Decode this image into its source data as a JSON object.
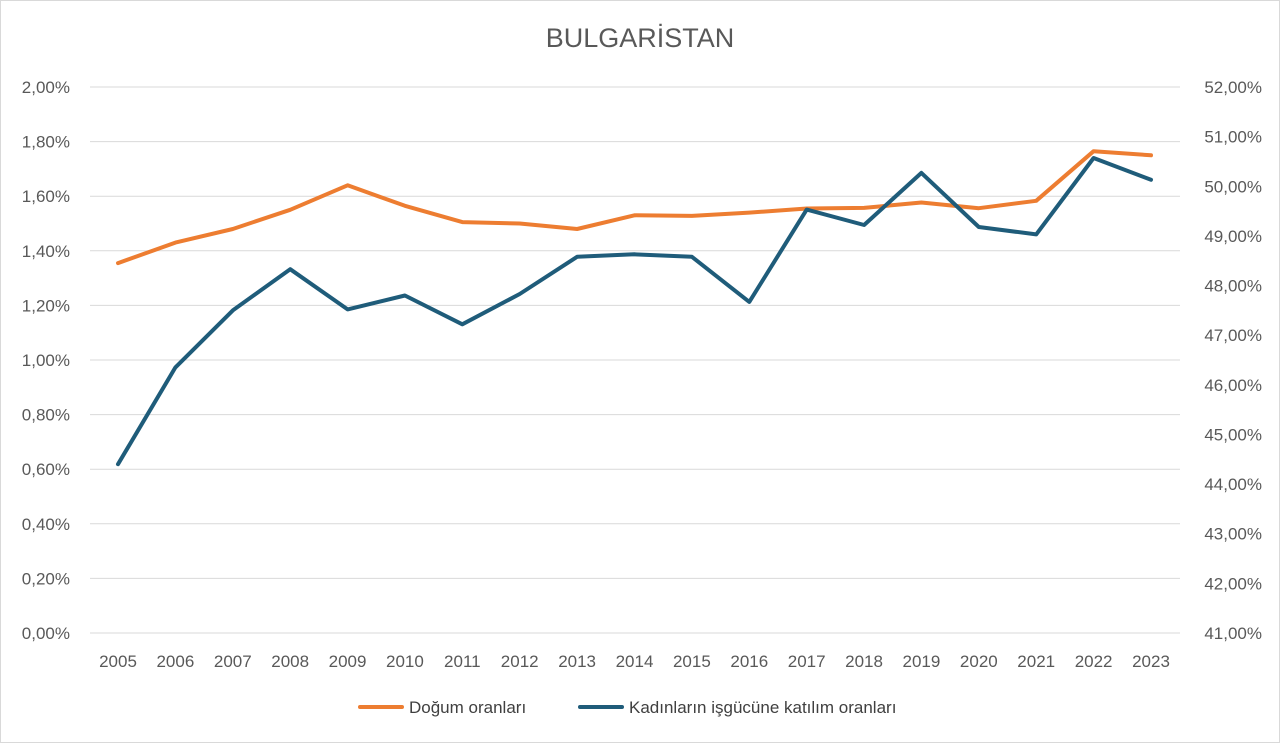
{
  "chart_data": {
    "type": "line",
    "title": "BULGARİSTAN",
    "x": [
      "2005",
      "2006",
      "2007",
      "2008",
      "2009",
      "2010",
      "2011",
      "2012",
      "2013",
      "2014",
      "2015",
      "2016",
      "2017",
      "2018",
      "2019",
      "2020",
      "2021",
      "2022",
      "2023"
    ],
    "y_left": {
      "ticks": [
        "0,00%",
        "0,20%",
        "0,40%",
        "0,60%",
        "0,80%",
        "1,00%",
        "1,20%",
        "1,40%",
        "1,60%",
        "1,80%",
        "2,00%"
      ],
      "range": [
        0,
        2.0
      ]
    },
    "y_right": {
      "ticks": [
        "41,00%",
        "42,00%",
        "43,00%",
        "44,00%",
        "45,00%",
        "46,00%",
        "47,00%",
        "48,00%",
        "49,00%",
        "50,00%",
        "51,00%",
        "52,00%"
      ],
      "range": [
        41.0,
        52.0
      ]
    },
    "series": [
      {
        "name": "Doğum oranları",
        "axis": "left",
        "color": "#ed7d31",
        "values": [
          1.355,
          1.43,
          1.48,
          1.55,
          1.64,
          1.565,
          1.505,
          1.5,
          1.48,
          1.53,
          1.528,
          1.54,
          1.555,
          1.557,
          1.577,
          1.556,
          1.583,
          1.765,
          1.75
        ]
      },
      {
        "name": "Kadınların işgücüne katılım oranları",
        "axis": "right",
        "color": "#1f5c7a",
        "values": [
          44.4,
          46.35,
          47.5,
          48.33,
          47.52,
          47.8,
          47.22,
          47.83,
          48.58,
          48.63,
          48.58,
          47.67,
          49.53,
          49.22,
          50.27,
          49.18,
          49.03,
          50.57,
          50.13
        ]
      }
    ],
    "grid": true,
    "legend_position": "bottom"
  }
}
